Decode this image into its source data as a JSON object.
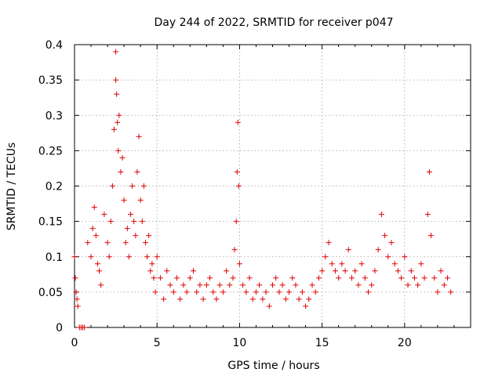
{
  "chart_data": {
    "type": "scatter",
    "title": "Day 244 of 2022, SRMTID for receiver p047",
    "xlabel": "GPS time / hours",
    "ylabel": "SRMTID / TECUs",
    "xlim": [
      0,
      24
    ],
    "ylim": [
      0,
      0.4
    ],
    "xticks": [
      0,
      5,
      10,
      15,
      20
    ],
    "yticks": [
      0,
      0.05,
      0.1,
      0.15,
      0.2,
      0.25,
      0.3,
      0.35,
      0.4
    ],
    "xtick_labels": [
      "0",
      "5",
      "10",
      "15",
      "20"
    ],
    "ytick_labels": [
      "0",
      "0.05",
      "0.1",
      "0.15",
      "0.2",
      "0.25",
      "0.3",
      "0.35",
      "0.4"
    ],
    "grid": true,
    "marker": "+",
    "color": "#e00000",
    "series": [
      {
        "name": "SRMTID",
        "x": [
          0.0,
          0.05,
          0.1,
          0.15,
          0.2,
          0.3,
          0.4,
          0.5,
          0.6,
          0.8,
          1.0,
          1.1,
          1.2,
          1.3,
          1.4,
          1.5,
          1.6,
          1.8,
          2.0,
          2.1,
          2.2,
          2.3,
          2.4,
          2.5,
          2.5,
          2.55,
          2.6,
          2.65,
          2.7,
          2.8,
          2.9,
          3.0,
          3.1,
          3.2,
          3.3,
          3.4,
          3.5,
          3.6,
          3.7,
          3.8,
          3.9,
          4.0,
          4.1,
          4.2,
          4.3,
          4.4,
          4.5,
          4.6,
          4.7,
          4.8,
          4.9,
          5.0,
          5.2,
          5.4,
          5.6,
          5.8,
          6.0,
          6.2,
          6.4,
          6.6,
          6.8,
          7.0,
          7.2,
          7.4,
          7.6,
          7.8,
          8.0,
          8.2,
          8.4,
          8.6,
          8.8,
          9.0,
          9.2,
          9.4,
          9.6,
          9.7,
          9.8,
          9.85,
          9.9,
          9.95,
          10.0,
          10.2,
          10.4,
          10.6,
          10.8,
          11.0,
          11.2,
          11.4,
          11.6,
          11.8,
          12.0,
          12.2,
          12.4,
          12.6,
          12.8,
          13.0,
          13.2,
          13.4,
          13.6,
          13.8,
          14.0,
          14.2,
          14.4,
          14.6,
          14.8,
          15.0,
          15.2,
          15.4,
          15.6,
          15.8,
          16.0,
          16.2,
          16.4,
          16.6,
          16.8,
          17.0,
          17.2,
          17.4,
          17.6,
          17.8,
          18.0,
          18.2,
          18.4,
          18.6,
          18.8,
          19.0,
          19.2,
          19.4,
          19.6,
          19.8,
          20.0,
          20.2,
          20.4,
          20.6,
          20.8,
          21.0,
          21.2,
          21.4,
          21.5,
          21.6,
          21.8,
          22.0,
          22.2,
          22.4,
          22.6,
          22.8
        ],
        "y": [
          0.1,
          0.07,
          0.05,
          0.04,
          0.03,
          0.0,
          0.0,
          0.0,
          0.0,
          0.12,
          0.1,
          0.14,
          0.17,
          0.13,
          0.09,
          0.08,
          0.06,
          0.16,
          0.12,
          0.1,
          0.15,
          0.2,
          0.28,
          0.39,
          0.35,
          0.33,
          0.29,
          0.25,
          0.3,
          0.22,
          0.24,
          0.18,
          0.12,
          0.14,
          0.1,
          0.16,
          0.2,
          0.15,
          0.13,
          0.22,
          0.27,
          0.18,
          0.15,
          0.2,
          0.12,
          0.1,
          0.13,
          0.08,
          0.09,
          0.07,
          0.05,
          0.1,
          0.07,
          0.04,
          0.08,
          0.06,
          0.05,
          0.07,
          0.04,
          0.06,
          0.05,
          0.07,
          0.08,
          0.05,
          0.06,
          0.04,
          0.06,
          0.07,
          0.05,
          0.04,
          0.06,
          0.05,
          0.08,
          0.06,
          0.07,
          0.11,
          0.15,
          0.22,
          0.29,
          0.2,
          0.09,
          0.06,
          0.05,
          0.07,
          0.04,
          0.05,
          0.06,
          0.04,
          0.05,
          0.03,
          0.06,
          0.07,
          0.05,
          0.06,
          0.04,
          0.05,
          0.07,
          0.06,
          0.04,
          0.05,
          0.03,
          0.04,
          0.06,
          0.05,
          0.07,
          0.08,
          0.1,
          0.12,
          0.09,
          0.08,
          0.07,
          0.09,
          0.08,
          0.11,
          0.07,
          0.08,
          0.06,
          0.09,
          0.07,
          0.05,
          0.06,
          0.08,
          0.11,
          0.16,
          0.13,
          0.1,
          0.12,
          0.09,
          0.08,
          0.07,
          0.1,
          0.06,
          0.08,
          0.07,
          0.06,
          0.09,
          0.07,
          0.16,
          0.22,
          0.13,
          0.07,
          0.05,
          0.08,
          0.06,
          0.07,
          0.05
        ]
      }
    ]
  }
}
